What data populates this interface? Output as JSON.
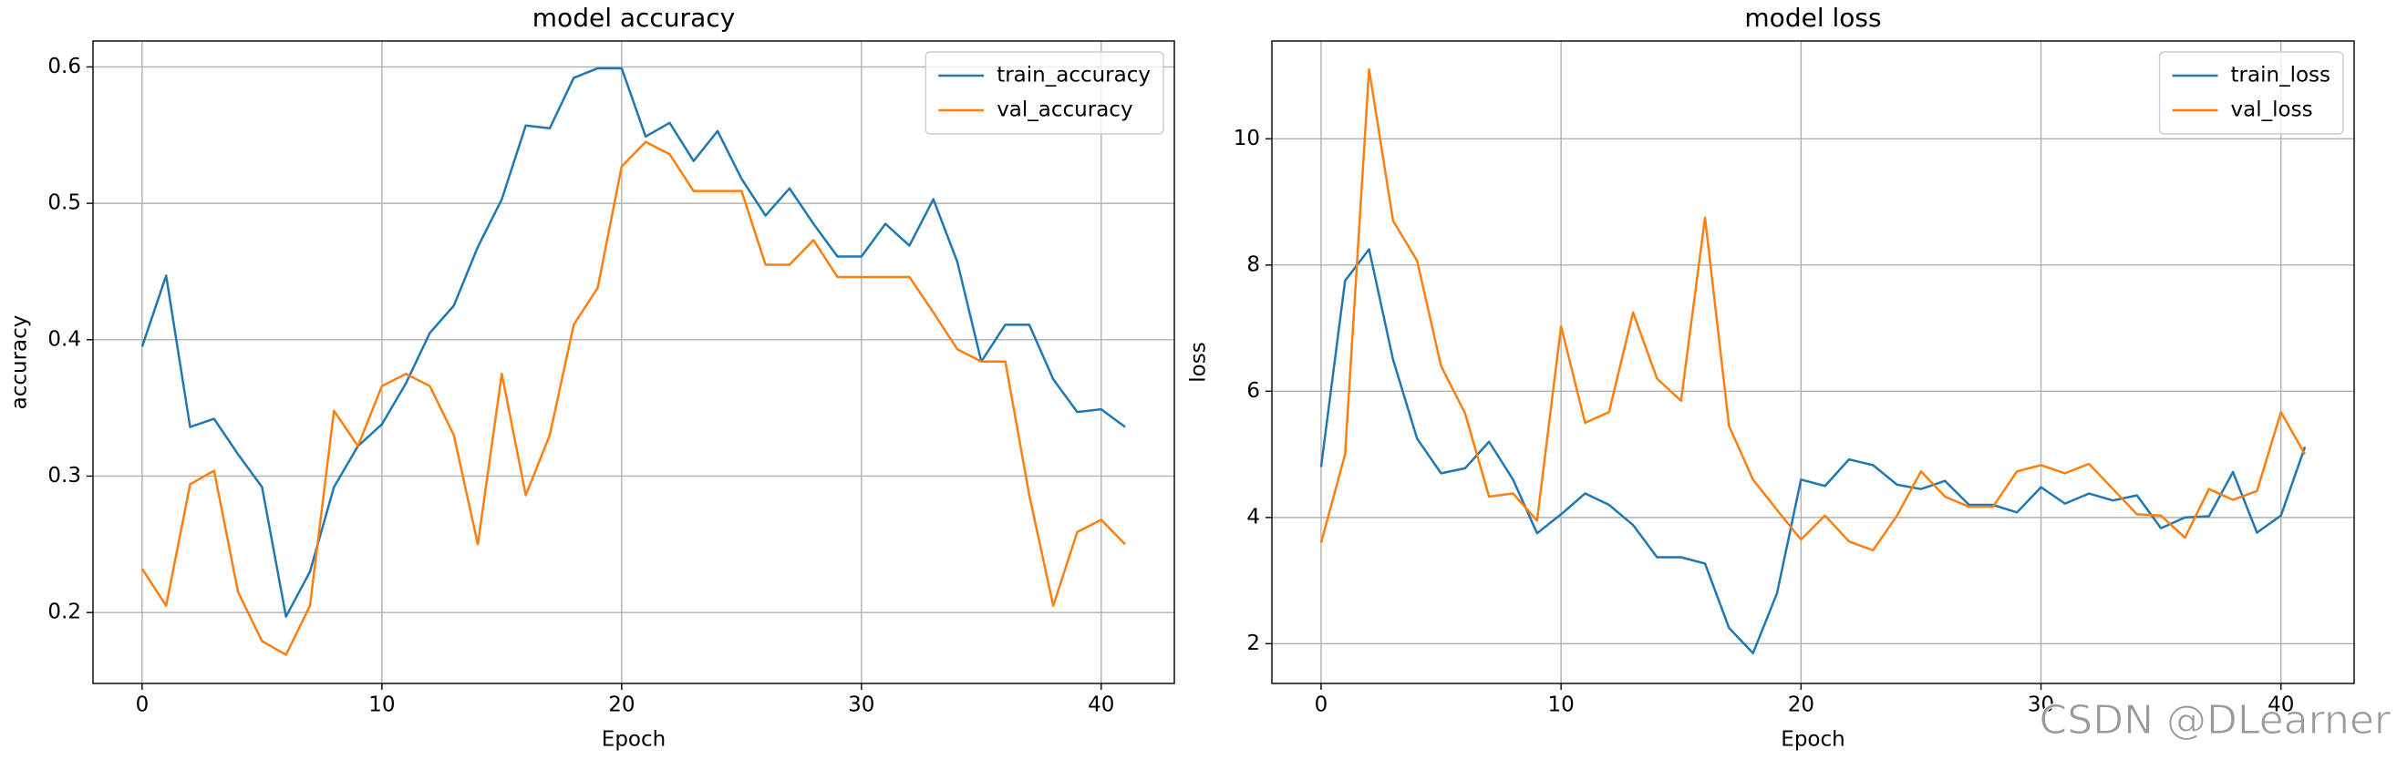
{
  "chart_data": [
    {
      "type": "line",
      "title": "model accuracy",
      "x_label": "Epoch",
      "y_label": "accuracy",
      "x": [
        0,
        1,
        2,
        3,
        4,
        5,
        6,
        7,
        8,
        9,
        10,
        11,
        12,
        13,
        14,
        15,
        16,
        17,
        18,
        19,
        20,
        21,
        22,
        23,
        24,
        25,
        26,
        27,
        28,
        29,
        30,
        31,
        32,
        33,
        34,
        35,
        36,
        37,
        38,
        39,
        40,
        41
      ],
      "series": [
        {
          "name": "train_accuracy",
          "color": "#1f77b4",
          "values": [
            0.395,
            0.447,
            0.336,
            0.342,
            0.316,
            0.292,
            0.197,
            0.23,
            0.292,
            0.322,
            0.338,
            0.368,
            0.405,
            0.425,
            0.468,
            0.503,
            0.557,
            0.555,
            0.592,
            0.599,
            0.599,
            0.549,
            0.559,
            0.531,
            0.553,
            0.518,
            0.491,
            0.511,
            0.485,
            0.461,
            0.461,
            0.485,
            0.469,
            0.503,
            0.457,
            0.384,
            0.411,
            0.411,
            0.371,
            0.347,
            0.349,
            0.336
          ]
        },
        {
          "name": "val_accuracy",
          "color": "#ff7f0e",
          "values": [
            0.232,
            0.205,
            0.294,
            0.304,
            0.215,
            0.179,
            0.169,
            0.205,
            0.348,
            0.322,
            0.366,
            0.375,
            0.366,
            0.33,
            0.25,
            0.375,
            0.286,
            0.33,
            0.411,
            0.438,
            0.527,
            0.545,
            0.536,
            0.509,
            0.509,
            0.509,
            0.455,
            0.455,
            0.473,
            0.446,
            0.446,
            0.446,
            0.446,
            0.42,
            0.393,
            0.384,
            0.384,
            0.286,
            0.205,
            0.259,
            0.268,
            0.25
          ]
        }
      ],
      "xlim": [
        -2.05,
        43.05
      ],
      "xticks": [
        0,
        10,
        20,
        30,
        40
      ],
      "ylim": [
        0.148,
        0.619
      ],
      "yticks": [
        0.2,
        0.3,
        0.4,
        0.5,
        0.6
      ],
      "grid": true,
      "legend": "upper right"
    },
    {
      "type": "line",
      "title": "model loss",
      "x_label": "Epoch",
      "y_label": "loss",
      "x": [
        0,
        1,
        2,
        3,
        4,
        5,
        6,
        7,
        8,
        9,
        10,
        11,
        12,
        13,
        14,
        15,
        16,
        17,
        18,
        19,
        20,
        21,
        22,
        23,
        24,
        25,
        26,
        27,
        28,
        29,
        30,
        31,
        32,
        33,
        34,
        35,
        36,
        37,
        38,
        39,
        40,
        41
      ],
      "series": [
        {
          "name": "train_loss",
          "color": "#1f77b4",
          "values": [
            4.8,
            7.75,
            8.25,
            6.5,
            5.25,
            4.7,
            4.78,
            5.2,
            4.6,
            3.75,
            4.05,
            4.38,
            4.2,
            3.88,
            3.37,
            3.37,
            3.27,
            2.25,
            1.85,
            2.8,
            4.6,
            4.5,
            4.92,
            4.83,
            4.52,
            4.45,
            4.58,
            4.2,
            4.2,
            4.08,
            4.48,
            4.22,
            4.38,
            4.27,
            4.35,
            3.83,
            4.0,
            4.02,
            4.72,
            3.76,
            4.03,
            5.12
          ]
        },
        {
          "name": "val_loss",
          "color": "#ff7f0e",
          "values": [
            3.6,
            5.0,
            11.1,
            8.7,
            8.07,
            6.4,
            5.65,
            4.33,
            4.38,
            3.95,
            7.03,
            5.5,
            5.67,
            7.25,
            6.2,
            5.85,
            8.75,
            5.45,
            4.6,
            4.12,
            3.65,
            4.03,
            3.62,
            3.48,
            4.03,
            4.73,
            4.33,
            4.17,
            4.17,
            4.73,
            4.83,
            4.7,
            4.85,
            4.45,
            4.05,
            4.03,
            3.68,
            4.45,
            4.28,
            4.42,
            5.67,
            5.0
          ]
        }
      ],
      "xlim": [
        -2.05,
        43.05
      ],
      "xticks": [
        0,
        10,
        20,
        30,
        40
      ],
      "ylim": [
        1.37,
        11.55
      ],
      "yticks": [
        2,
        4,
        6,
        8,
        10
      ],
      "grid": true,
      "legend": "upper right"
    }
  ],
  "watermark": "CSDN @DLearner"
}
